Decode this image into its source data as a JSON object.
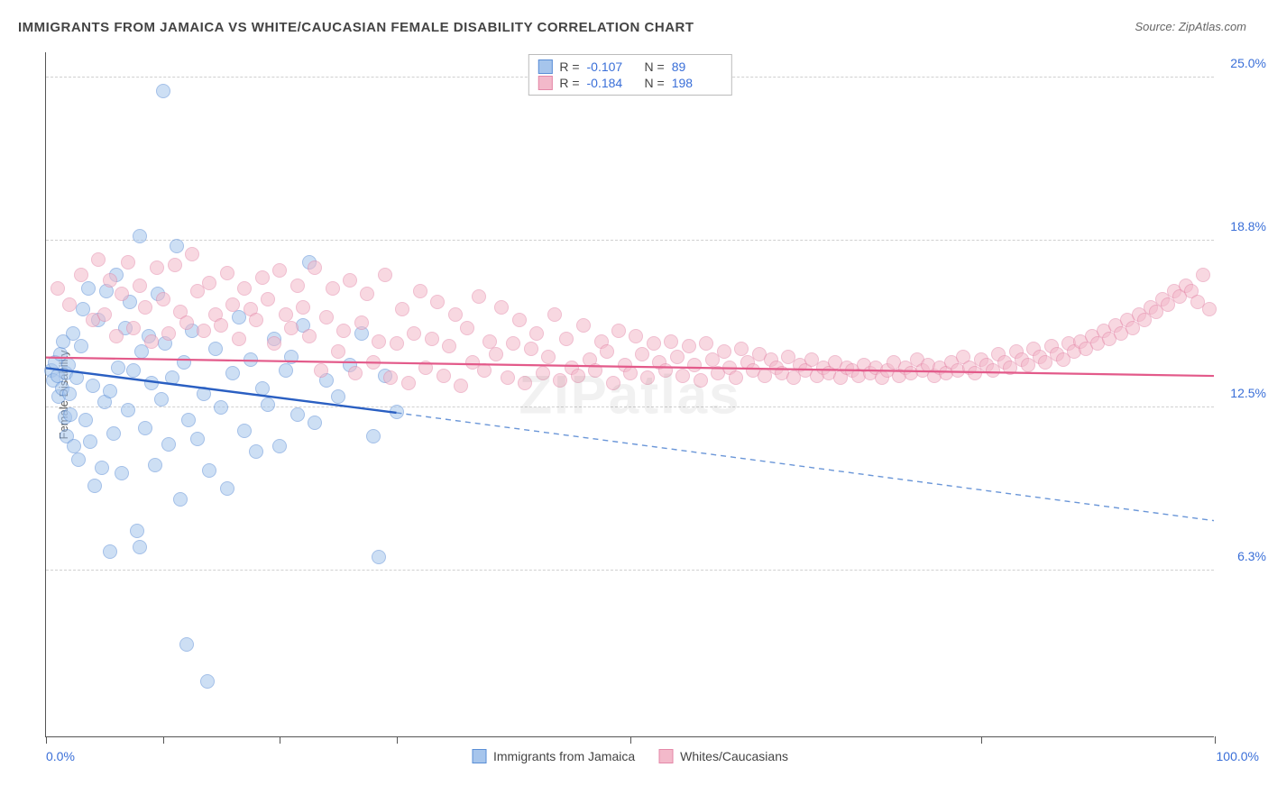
{
  "title": "IMMIGRANTS FROM JAMAICA VS WHITE/CAUCASIAN FEMALE DISABILITY CORRELATION CHART",
  "source": "Source: ZipAtlas.com",
  "watermark": "ZIPatlas",
  "y_axis_label": "Female Disability",
  "chart": {
    "type": "scatter",
    "xlim": [
      0,
      100
    ],
    "ylim": [
      0,
      26
    ],
    "y_ticks": [
      {
        "value": 6.3,
        "label": "6.3%"
      },
      {
        "value": 12.5,
        "label": "12.5%"
      },
      {
        "value": 18.8,
        "label": "18.8%"
      },
      {
        "value": 25.0,
        "label": "25.0%"
      }
    ],
    "x_tick_positions": [
      0,
      10,
      20,
      30,
      50,
      80,
      100
    ],
    "x_label_min": "0.0%",
    "x_label_max": "100.0%",
    "background_color": "#ffffff",
    "grid_color": "#d0d0d0",
    "point_radius": 8,
    "point_opacity": 0.55,
    "series": [
      {
        "name": "Immigrants from Jamaica",
        "color_fill": "#a6c5ec",
        "color_stroke": "#5a8ed6",
        "R": "-0.107",
        "N": "89",
        "trend": {
          "x1": 0,
          "y1": 14.0,
          "x2": 30,
          "y2": 12.3,
          "solid_color": "#2a5fc2",
          "solid_width": 2.4
        },
        "trend_ext": {
          "x1": 30,
          "y1": 12.3,
          "x2": 100,
          "y2": 8.2,
          "dash_color": "#6a96d8",
          "dash": "6,5",
          "width": 1.4
        },
        "points": [
          [
            0.5,
            13.9
          ],
          [
            0.6,
            13.5
          ],
          [
            0.8,
            14.2
          ],
          [
            1.0,
            13.7
          ],
          [
            1.1,
            12.9
          ],
          [
            1.2,
            14.5
          ],
          [
            1.4,
            13.2
          ],
          [
            1.5,
            15.0
          ],
          [
            1.6,
            12.1
          ],
          [
            1.7,
            13.8
          ],
          [
            1.8,
            11.4
          ],
          [
            1.9,
            14.1
          ],
          [
            2.0,
            13.0
          ],
          [
            2.1,
            12.2
          ],
          [
            2.3,
            15.3
          ],
          [
            2.4,
            11.0
          ],
          [
            2.6,
            13.6
          ],
          [
            2.8,
            10.5
          ],
          [
            3.0,
            14.8
          ],
          [
            3.2,
            16.2
          ],
          [
            3.4,
            12.0
          ],
          [
            3.6,
            17.0
          ],
          [
            3.8,
            11.2
          ],
          [
            4.0,
            13.3
          ],
          [
            4.2,
            9.5
          ],
          [
            4.5,
            15.8
          ],
          [
            4.8,
            10.2
          ],
          [
            5.0,
            12.7
          ],
          [
            5.2,
            16.9
          ],
          [
            5.5,
            13.1
          ],
          [
            5.8,
            11.5
          ],
          [
            6.0,
            17.5
          ],
          [
            6.2,
            14.0
          ],
          [
            6.5,
            10.0
          ],
          [
            6.8,
            15.5
          ],
          [
            7.0,
            12.4
          ],
          [
            7.2,
            16.5
          ],
          [
            7.5,
            13.9
          ],
          [
            7.8,
            7.8
          ],
          [
            8.0,
            19.0
          ],
          [
            8.2,
            14.6
          ],
          [
            8.5,
            11.7
          ],
          [
            8.8,
            15.2
          ],
          [
            9.0,
            13.4
          ],
          [
            9.3,
            10.3
          ],
          [
            9.6,
            16.8
          ],
          [
            9.9,
            12.8
          ],
          [
            10.2,
            14.9
          ],
          [
            10.5,
            11.1
          ],
          [
            10.8,
            13.6
          ],
          [
            11.2,
            18.6
          ],
          [
            11.5,
            9.0
          ],
          [
            11.8,
            14.2
          ],
          [
            12.2,
            12.0
          ],
          [
            12.5,
            15.4
          ],
          [
            13.0,
            11.3
          ],
          [
            13.5,
            13.0
          ],
          [
            14.0,
            10.1
          ],
          [
            14.5,
            14.7
          ],
          [
            15.0,
            12.5
          ],
          [
            15.5,
            9.4
          ],
          [
            16.0,
            13.8
          ],
          [
            16.5,
            15.9
          ],
          [
            17.0,
            11.6
          ],
          [
            17.5,
            14.3
          ],
          [
            18.0,
            10.8
          ],
          [
            18.5,
            13.2
          ],
          [
            19.0,
            12.6
          ],
          [
            19.5,
            15.1
          ],
          [
            20.0,
            11.0
          ],
          [
            20.5,
            13.9
          ],
          [
            21.0,
            14.4
          ],
          [
            21.5,
            12.2
          ],
          [
            22.0,
            15.6
          ],
          [
            22.5,
            18.0
          ],
          [
            23.0,
            11.9
          ],
          [
            24.0,
            13.5
          ],
          [
            25.0,
            12.9
          ],
          [
            26.0,
            14.1
          ],
          [
            27.0,
            15.3
          ],
          [
            28.0,
            11.4
          ],
          [
            29.0,
            13.7
          ],
          [
            30.0,
            12.3
          ],
          [
            10.0,
            24.5
          ],
          [
            12.0,
            3.5
          ],
          [
            13.8,
            2.1
          ],
          [
            28.5,
            6.8
          ],
          [
            8.0,
            7.2
          ],
          [
            5.5,
            7.0
          ]
        ]
      },
      {
        "name": "Whites/Caucasians",
        "color_fill": "#f3b9ca",
        "color_stroke": "#e488a8",
        "R": "-0.184",
        "N": "198",
        "trend": {
          "x1": 0,
          "y1": 14.4,
          "x2": 100,
          "y2": 13.7,
          "solid_color": "#e35a8a",
          "solid_width": 2.2
        },
        "points": [
          [
            1,
            17.0
          ],
          [
            2,
            16.4
          ],
          [
            3,
            17.5
          ],
          [
            4,
            15.8
          ],
          [
            4.5,
            18.1
          ],
          [
            5,
            16.0
          ],
          [
            5.5,
            17.3
          ],
          [
            6,
            15.2
          ],
          [
            6.5,
            16.8
          ],
          [
            7,
            18.0
          ],
          [
            7.5,
            15.5
          ],
          [
            8,
            17.1
          ],
          [
            8.5,
            16.3
          ],
          [
            9,
            15.0
          ],
          [
            9.5,
            17.8
          ],
          [
            10,
            16.6
          ],
          [
            10.5,
            15.3
          ],
          [
            11,
            17.9
          ],
          [
            11.5,
            16.1
          ],
          [
            12,
            15.7
          ],
          [
            12.5,
            18.3
          ],
          [
            13,
            16.9
          ],
          [
            13.5,
            15.4
          ],
          [
            14,
            17.2
          ],
          [
            14.5,
            16.0
          ],
          [
            15,
            15.6
          ],
          [
            15.5,
            17.6
          ],
          [
            16,
            16.4
          ],
          [
            16.5,
            15.1
          ],
          [
            17,
            17.0
          ],
          [
            17.5,
            16.2
          ],
          [
            18,
            15.8
          ],
          [
            18.5,
            17.4
          ],
          [
            19,
            16.6
          ],
          [
            19.5,
            14.9
          ],
          [
            20,
            17.7
          ],
          [
            20.5,
            16.0
          ],
          [
            21,
            15.5
          ],
          [
            21.5,
            17.1
          ],
          [
            22,
            16.3
          ],
          [
            22.5,
            15.2
          ],
          [
            23,
            17.8
          ],
          [
            23.5,
            13.9
          ],
          [
            24,
            15.9
          ],
          [
            24.5,
            17.0
          ],
          [
            25,
            14.6
          ],
          [
            25.5,
            15.4
          ],
          [
            26,
            17.3
          ],
          [
            26.5,
            13.8
          ],
          [
            27,
            15.7
          ],
          [
            27.5,
            16.8
          ],
          [
            28,
            14.2
          ],
          [
            28.5,
            15.0
          ],
          [
            29,
            17.5
          ],
          [
            29.5,
            13.6
          ],
          [
            30,
            14.9
          ],
          [
            30.5,
            16.2
          ],
          [
            31,
            13.4
          ],
          [
            31.5,
            15.3
          ],
          [
            32,
            16.9
          ],
          [
            32.5,
            14.0
          ],
          [
            33,
            15.1
          ],
          [
            33.5,
            16.5
          ],
          [
            34,
            13.7
          ],
          [
            34.5,
            14.8
          ],
          [
            35,
            16.0
          ],
          [
            35.5,
            13.3
          ],
          [
            36,
            15.5
          ],
          [
            36.5,
            14.2
          ],
          [
            37,
            16.7
          ],
          [
            37.5,
            13.9
          ],
          [
            38,
            15.0
          ],
          [
            38.5,
            14.5
          ],
          [
            39,
            16.3
          ],
          [
            39.5,
            13.6
          ],
          [
            40,
            14.9
          ],
          [
            40.5,
            15.8
          ],
          [
            41,
            13.4
          ],
          [
            41.5,
            14.7
          ],
          [
            42,
            15.3
          ],
          [
            42.5,
            13.8
          ],
          [
            43,
            14.4
          ],
          [
            43.5,
            16.0
          ],
          [
            44,
            13.5
          ],
          [
            44.5,
            15.1
          ],
          [
            45,
            14.0
          ],
          [
            45.5,
            13.7
          ],
          [
            46,
            15.6
          ],
          [
            46.5,
            14.3
          ],
          [
            47,
            13.9
          ],
          [
            47.5,
            15.0
          ],
          [
            48,
            14.6
          ],
          [
            48.5,
            13.4
          ],
          [
            49,
            15.4
          ],
          [
            49.5,
            14.1
          ],
          [
            50,
            13.8
          ],
          [
            50.5,
            15.2
          ],
          [
            51,
            14.5
          ],
          [
            51.5,
            13.6
          ],
          [
            52,
            14.9
          ],
          [
            52.5,
            14.2
          ],
          [
            53,
            13.9
          ],
          [
            53.5,
            15.0
          ],
          [
            54,
            14.4
          ],
          [
            54.5,
            13.7
          ],
          [
            55,
            14.8
          ],
          [
            55.5,
            14.1
          ],
          [
            56,
            13.5
          ],
          [
            56.5,
            14.9
          ],
          [
            57,
            14.3
          ],
          [
            57.5,
            13.8
          ],
          [
            58,
            14.6
          ],
          [
            58.5,
            14.0
          ],
          [
            59,
            13.6
          ],
          [
            59.5,
            14.7
          ],
          [
            60,
            14.2
          ],
          [
            60.5,
            13.9
          ],
          [
            61,
            14.5
          ],
          [
            61.5,
            13.7
          ],
          [
            62,
            14.3
          ],
          [
            62.5,
            14.0
          ],
          [
            63,
            13.8
          ],
          [
            63.5,
            14.4
          ],
          [
            64,
            13.6
          ],
          [
            64.5,
            14.1
          ],
          [
            65,
            13.9
          ],
          [
            65.5,
            14.3
          ],
          [
            66,
            13.7
          ],
          [
            66.5,
            14.0
          ],
          [
            67,
            13.8
          ],
          [
            67.5,
            14.2
          ],
          [
            68,
            13.6
          ],
          [
            68.5,
            14.0
          ],
          [
            69,
            13.9
          ],
          [
            69.5,
            13.7
          ],
          [
            70,
            14.1
          ],
          [
            70.5,
            13.8
          ],
          [
            71,
            14.0
          ],
          [
            71.5,
            13.6
          ],
          [
            72,
            13.9
          ],
          [
            72.5,
            14.2
          ],
          [
            73,
            13.7
          ],
          [
            73.5,
            14.0
          ],
          [
            74,
            13.8
          ],
          [
            74.5,
            14.3
          ],
          [
            75,
            13.9
          ],
          [
            75.5,
            14.1
          ],
          [
            76,
            13.7
          ],
          [
            76.5,
            14.0
          ],
          [
            77,
            13.8
          ],
          [
            77.5,
            14.2
          ],
          [
            78,
            13.9
          ],
          [
            78.5,
            14.4
          ],
          [
            79,
            14.0
          ],
          [
            79.5,
            13.8
          ],
          [
            80,
            14.3
          ],
          [
            80.5,
            14.1
          ],
          [
            81,
            13.9
          ],
          [
            81.5,
            14.5
          ],
          [
            82,
            14.2
          ],
          [
            82.5,
            14.0
          ],
          [
            83,
            14.6
          ],
          [
            83.5,
            14.3
          ],
          [
            84,
            14.1
          ],
          [
            84.5,
            14.7
          ],
          [
            85,
            14.4
          ],
          [
            85.5,
            14.2
          ],
          [
            86,
            14.8
          ],
          [
            86.5,
            14.5
          ],
          [
            87,
            14.3
          ],
          [
            87.5,
            14.9
          ],
          [
            88,
            14.6
          ],
          [
            88.5,
            15.0
          ],
          [
            89,
            14.7
          ],
          [
            89.5,
            15.2
          ],
          [
            90,
            14.9
          ],
          [
            90.5,
            15.4
          ],
          [
            91,
            15.1
          ],
          [
            91.5,
            15.6
          ],
          [
            92,
            15.3
          ],
          [
            92.5,
            15.8
          ],
          [
            93,
            15.5
          ],
          [
            93.5,
            16.0
          ],
          [
            94,
            15.8
          ],
          [
            94.5,
            16.3
          ],
          [
            95,
            16.1
          ],
          [
            95.5,
            16.6
          ],
          [
            96,
            16.4
          ],
          [
            96.5,
            16.9
          ],
          [
            97,
            16.7
          ],
          [
            97.5,
            17.1
          ],
          [
            98,
            16.9
          ],
          [
            98.5,
            16.5
          ],
          [
            99,
            17.5
          ],
          [
            99.5,
            16.2
          ]
        ]
      }
    ]
  },
  "legend_top_labels": {
    "R": "R =",
    "N": "N ="
  },
  "legend_bottom": [
    {
      "label": "Immigrants from Jamaica",
      "fill": "#a6c5ec",
      "stroke": "#5a8ed6"
    },
    {
      "label": "Whites/Caucasians",
      "fill": "#f3b9ca",
      "stroke": "#e488a8"
    }
  ]
}
